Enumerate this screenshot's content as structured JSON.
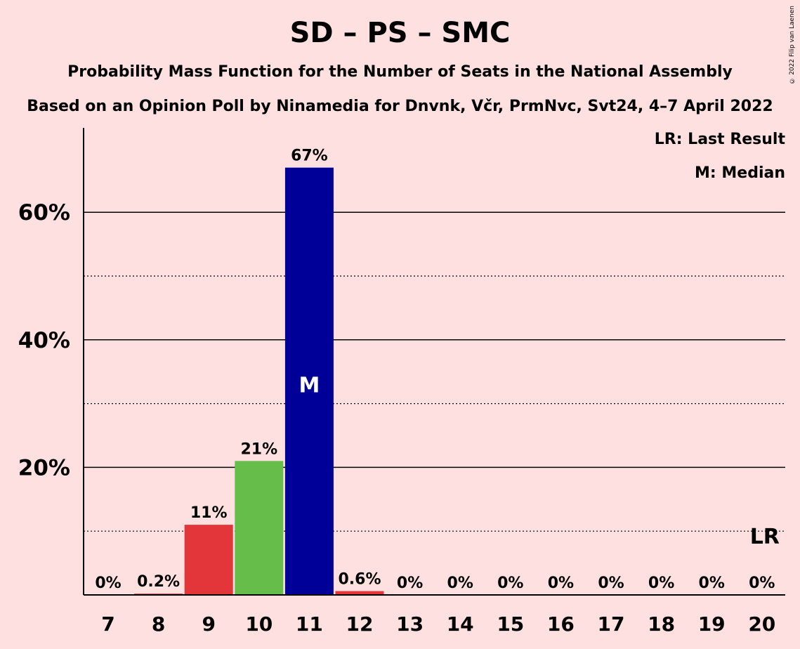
{
  "chart_data": {
    "type": "bar",
    "title": "SD – PS – SMC",
    "subtitle": "Probability Mass Function for the Number of Seats in the National Assembly",
    "subtitle2": "Based on an Opinion Poll by Ninamedia for Dnvnk, Včr, PrmNvc, Svt24, 4–7 April 2022",
    "copyright": "© 2022 Filip van Laenen",
    "legend": [
      "LR: Last Result",
      "M: Median"
    ],
    "legend_position": "top-right",
    "categories": [
      "7",
      "8",
      "9",
      "10",
      "11",
      "12",
      "13",
      "14",
      "15",
      "16",
      "17",
      "18",
      "19",
      "20"
    ],
    "values": [
      0,
      0.2,
      11,
      21,
      67,
      0.6,
      0,
      0,
      0,
      0,
      0,
      0,
      0,
      0
    ],
    "value_labels": [
      "0%",
      "0.2%",
      "11%",
      "21%",
      "67%",
      "0.6%",
      "0%",
      "0%",
      "0%",
      "0%",
      "0%",
      "0%",
      "0%",
      "0%"
    ],
    "bar_colors": [
      "#e3363b",
      "#e3363b",
      "#e3363b",
      "#66bd4a",
      "#000099",
      "#e3363b",
      "#e3363b",
      "#e3363b",
      "#e3363b",
      "#e3363b",
      "#e3363b",
      "#e3363b",
      "#e3363b",
      "#e3363b"
    ],
    "median_category": "11",
    "median_label": "M",
    "last_result_category": "20",
    "last_result_label": "LR",
    "yticks": [
      20,
      40,
      60
    ],
    "ytick_labels": [
      "20%",
      "40%",
      "60%"
    ],
    "minor_gridlines": [
      10,
      30,
      50
    ],
    "ylim": [
      0,
      73
    ],
    "grid": true,
    "xlabel": "",
    "ylabel": ""
  }
}
